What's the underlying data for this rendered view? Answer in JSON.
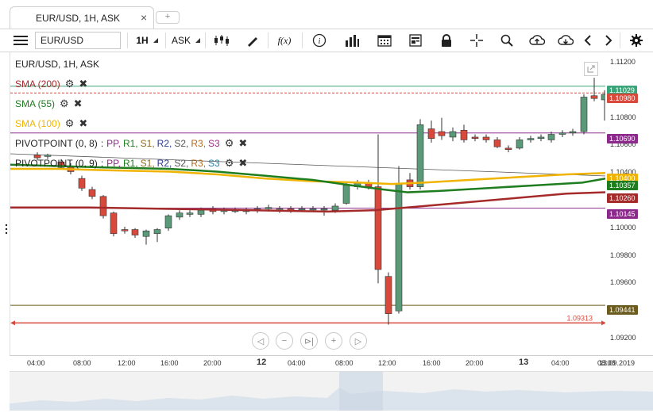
{
  "tab": {
    "title": "EUR/USD, 1H, ASK",
    "close": "×",
    "new": "+"
  },
  "toolbar": {
    "symbol": "EUR/USD",
    "timeframe": "1H",
    "side": "ASK",
    "menu_icon": "hamburger-icon",
    "fx_label": "f(x)",
    "info_label": "i"
  },
  "legend": {
    "title": "EUR/USD, 1H, ASK",
    "sma200": "SMA (200)",
    "sma55": "SMA (55)",
    "sma100": "SMA (100)",
    "pivot1_name": "PIVOTPOINT (0, 8)",
    "pivot2_name": "PIVOTPOINT (0, 9)",
    "pivot_sep": ":",
    "pivot_levels": [
      "PP,",
      "R1,",
      "S1,",
      "R2,",
      "S2,",
      "R3,",
      "S3"
    ]
  },
  "colors": {
    "sma200": "#a52a2a",
    "sma55": "#1e7d1e",
    "sma100": "#f0b400",
    "bull": "#5a9a78",
    "bear": "#d9493b",
    "pivot": "#8b2a8b"
  },
  "price_axis": {
    "ticks": [
      "1.11200",
      "1.11000",
      "1.10800",
      "1.10600",
      "1.10400",
      "1.10200",
      "1.10000",
      "1.09800",
      "1.09600",
      "1.09400",
      "1.09200"
    ],
    "tags": [
      {
        "label": "1.11029",
        "color": "#3aa57a"
      },
      {
        "label": "1.10980",
        "color": "#d9493b"
      },
      {
        "label": "1.10690",
        "color": "#8b2a8b"
      },
      {
        "label": "1.10400",
        "color": "#f0b400"
      },
      {
        "label": "1.10357",
        "color": "#1e7d1e"
      },
      {
        "label": "1.10260",
        "color": "#a52a2a"
      },
      {
        "label": "1.10145",
        "color": "#8b2a8b"
      },
      {
        "label": "1.09441",
        "color": "#6b5b1e"
      }
    ],
    "low_marker": "1.09313"
  },
  "time_axis": {
    "labels": [
      "04:00",
      "08:00",
      "12:00",
      "16:00",
      "20:00",
      "12",
      "04:00",
      "08:00",
      "12:00",
      "16:00",
      "20:00",
      "13",
      "04:00",
      "08:00",
      "13.09.2019"
    ]
  },
  "zoom_controls": [
    "◁",
    "−",
    "⊳|",
    "+",
    "▷"
  ]
}
